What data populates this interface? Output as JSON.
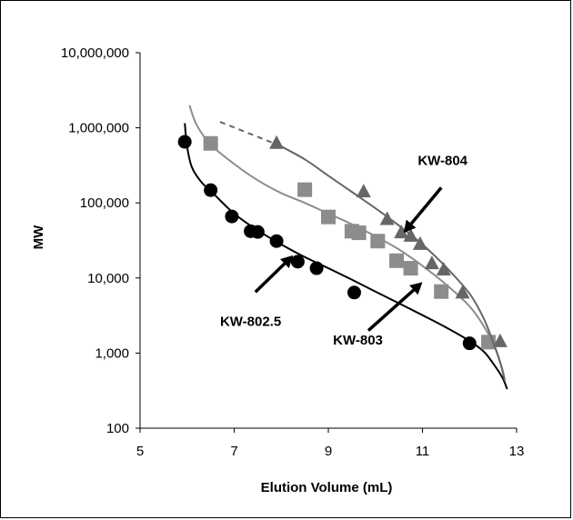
{
  "chart_data": {
    "type": "scatter",
    "title": "",
    "xlabel": "Elution Volume (mL)",
    "ylabel": "MW",
    "xlim": [
      5,
      13
    ],
    "ylim": [
      100,
      10000000
    ],
    "y_scale": "log",
    "grid": false,
    "x_ticks": [
      "5",
      "7",
      "9",
      "11",
      "13"
    ],
    "y_ticks": [
      "100",
      "1,000",
      "10,000",
      "100,000",
      "1,000,000",
      "10,000,000"
    ],
    "series": [
      {
        "marker": "circle",
        "color": "#000000",
        "points": [
          [
            5.95,
            650000
          ],
          [
            6.5,
            148000
          ],
          [
            6.95,
            66000
          ],
          [
            7.35,
            42000
          ],
          [
            7.5,
            41000
          ],
          [
            7.9,
            31000
          ],
          [
            8.35,
            16500
          ],
          [
            8.75,
            13500
          ],
          [
            9.55,
            6400
          ],
          [
            12.0,
            1350
          ]
        ],
        "fit": [
          [
            5.95,
            1150000
          ],
          [
            6.0,
            560000
          ],
          [
            6.1,
            300000
          ],
          [
            6.3,
            190000
          ],
          [
            6.6,
            125000
          ],
          [
            7.0,
            72000
          ],
          [
            7.5,
            43000
          ],
          [
            8.0,
            28000
          ],
          [
            8.5,
            19000
          ],
          [
            9.0,
            13500
          ],
          [
            9.5,
            9500
          ],
          [
            10.0,
            6600
          ],
          [
            10.5,
            4600
          ],
          [
            11.0,
            3200
          ],
          [
            11.5,
            2200
          ],
          [
            12.0,
            1450
          ],
          [
            12.3,
            1050
          ],
          [
            12.5,
            730
          ],
          [
            12.7,
            470
          ],
          [
            12.8,
            330
          ]
        ]
      },
      {
        "marker": "square",
        "color": "#8c8c8c",
        "points": [
          [
            6.5,
            620000
          ],
          [
            8.5,
            150000
          ],
          [
            9.0,
            65000
          ],
          [
            9.5,
            42000
          ],
          [
            9.65,
            40000
          ],
          [
            10.05,
            31000
          ],
          [
            10.45,
            17000
          ],
          [
            10.75,
            13500
          ],
          [
            11.4,
            6600
          ],
          [
            12.4,
            1400
          ]
        ],
        "fit": [
          [
            6.05,
            2000000
          ],
          [
            6.2,
            1100000
          ],
          [
            6.5,
            600000
          ],
          [
            7.0,
            330000
          ],
          [
            7.5,
            200000
          ],
          [
            8.0,
            135000
          ],
          [
            8.5,
            100000
          ],
          [
            9.0,
            72000
          ],
          [
            9.5,
            52000
          ],
          [
            10.0,
            36000
          ],
          [
            10.5,
            24000
          ],
          [
            11.0,
            14500
          ],
          [
            11.5,
            8200
          ],
          [
            12.0,
            4200
          ],
          [
            12.3,
            2300
          ],
          [
            12.55,
            1150
          ],
          [
            12.7,
            600
          ],
          [
            12.75,
            430
          ]
        ]
      },
      {
        "marker": "triangle",
        "color": "#666666",
        "points": [
          [
            7.9,
            620000
          ],
          [
            9.75,
            140000
          ],
          [
            10.25,
            60000
          ],
          [
            10.55,
            40000
          ],
          [
            10.75,
            36000
          ],
          [
            10.95,
            28000
          ],
          [
            11.2,
            15500
          ],
          [
            11.45,
            12800
          ],
          [
            11.85,
            6300
          ],
          [
            12.65,
            1420
          ]
        ],
        "fit": [
          [
            7.9,
            610000
          ],
          [
            8.5,
            380000
          ],
          [
            9.0,
            230000
          ],
          [
            9.5,
            140000
          ],
          [
            10.0,
            85000
          ],
          [
            10.5,
            50000
          ],
          [
            11.0,
            28000
          ],
          [
            11.5,
            14000
          ],
          [
            12.0,
            6200
          ],
          [
            12.3,
            2900
          ],
          [
            12.5,
            1400
          ],
          [
            12.65,
            750
          ],
          [
            12.75,
            430
          ]
        ],
        "dashed": [
          [
            6.7,
            1200000
          ],
          [
            7.85,
            620000
          ]
        ]
      }
    ],
    "annotations": [
      {
        "text": "KW-802.5",
        "tx": 6.7,
        "ty": 2300,
        "from": [
          7.45,
          6500
        ],
        "to": [
          8.25,
          20000
        ]
      },
      {
        "text": "KW-803",
        "tx": 9.1,
        "ty": 1300,
        "from": [
          9.85,
          2000
        ],
        "to": [
          11.0,
          8800
        ]
      },
      {
        "text": "KW-804",
        "tx": 10.9,
        "ty": 320000,
        "from": [
          11.4,
          160000
        ],
        "to": [
          10.6,
          40000
        ]
      }
    ]
  }
}
